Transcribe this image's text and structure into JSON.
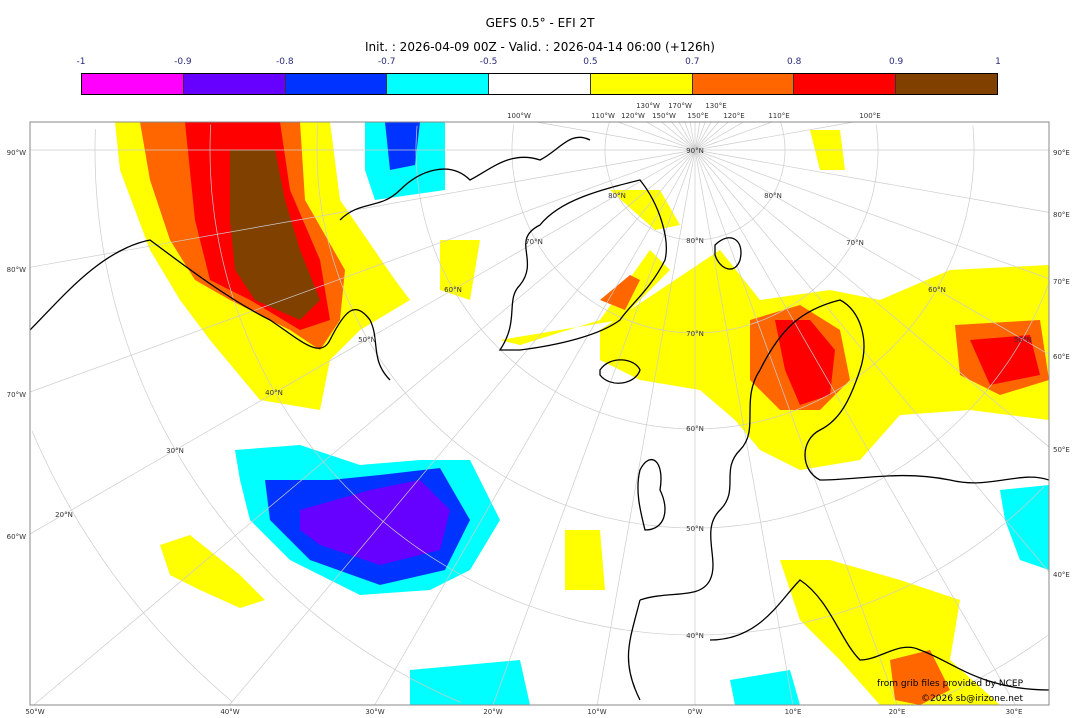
{
  "header": {
    "title": "GEFS 0.5° - EFI 2T",
    "subtitle": "Init. : 2026-04-09 00Z - Valid. : 2026-04-14 06:00 (+126h)"
  },
  "colorbar": {
    "ticks": [
      "-1",
      "-0.9",
      "-0.8",
      "-0.7",
      "-0.5",
      "0.5",
      "0.7",
      "0.8",
      "0.9",
      "1"
    ],
    "colors": [
      "#ff00ff",
      "#6600ff",
      "#0033ff",
      "#00ffff",
      "#ffffff",
      "#ffff00",
      "#ff6600",
      "#ff0000",
      "#804000"
    ]
  },
  "graticule": {
    "left": [
      "90°W",
      "80°W",
      "70°W",
      "60°W"
    ],
    "bottom": [
      "50°W",
      "40°W",
      "30°W",
      "20°W",
      "10°W",
      "0°W",
      "10°E",
      "20°E",
      "30°E"
    ],
    "right": [
      "90°E",
      "80°E",
      "70°E",
      "60°E",
      "50°E",
      "40°E"
    ],
    "top": [
      "100°W",
      "110°W",
      "120°W",
      "130°W",
      "150°W",
      "170°W",
      "150°E",
      "130°E",
      "120°E",
      "110°E",
      "100°E"
    ],
    "center_lat": [
      "90°N",
      "80°N",
      "70°N",
      "60°N",
      "50°N",
      "40°N"
    ],
    "left_lat": [
      "80°N",
      "70°N",
      "60°N",
      "50°N",
      "40°N",
      "30°N",
      "20°N"
    ],
    "right_lat": [
      "80°N",
      "70°N",
      "60°N",
      "50°N"
    ]
  },
  "credits": {
    "source": "from grib files provided by NCEP",
    "copyright": "©2026 sb@irizone.net"
  }
}
